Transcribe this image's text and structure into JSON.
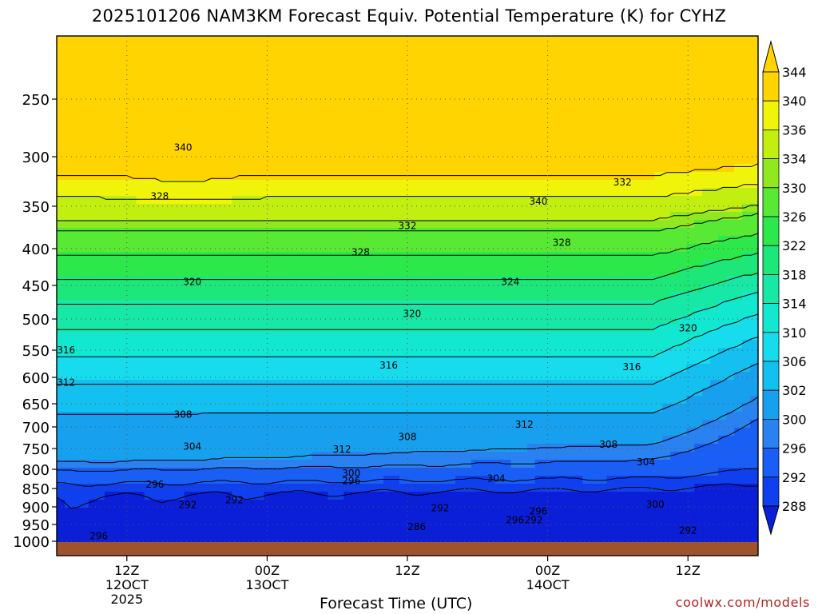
{
  "chart_data": {
    "type": "heatmap",
    "title": "2025101206 NAM3KM Forecast Equiv. Potential Temperature (K) for CYHZ",
    "xlabel": "Forecast Time (UTC)",
    "y_axis": {
      "scale": "pressure",
      "inverted": true,
      "range": [
        1000,
        200
      ],
      "ticks": [
        250,
        300,
        350,
        400,
        450,
        500,
        550,
        600,
        650,
        700,
        750,
        800,
        850,
        900,
        950,
        1000
      ]
    },
    "x_axis": {
      "range_hours": [
        -15,
        135
      ],
      "ticks": [
        {
          "hour": 0,
          "label": "12Z",
          "sub": "12OCT",
          "sub2": "2025"
        },
        {
          "hour": 30,
          "label": "00Z",
          "sub": "13OCT",
          "sub2": ""
        },
        {
          "hour": 60,
          "label": "12Z",
          "sub": "",
          "sub2": ""
        },
        {
          "hour": 90,
          "label": "00Z",
          "sub": "14OCT",
          "sub2": ""
        },
        {
          "hour": 120,
          "label": "12Z",
          "sub": "",
          "sub2": ""
        }
      ]
    },
    "grid": "dotted",
    "colorbar": {
      "placement": "right",
      "levels": [
        288,
        292,
        296,
        300,
        302,
        306,
        310,
        314,
        318,
        322,
        326,
        330,
        334,
        336,
        340,
        344
      ],
      "colors": [
        "#0b1fd8",
        "#1040ee",
        "#1a5ff5",
        "#2a82f0",
        "#16a0ee",
        "#14c0f0",
        "#17dcee",
        "#12e8d0",
        "#17e8a6",
        "#1ce778",
        "#2de84a",
        "#58e934",
        "#90e81f",
        "#c2ee10",
        "#f0f40a",
        "#ffd400"
      ]
    },
    "contour_labels": [
      {
        "x": -6,
        "p": 985,
        "text": "296"
      },
      {
        "x": -13,
        "p": 550,
        "text": "316"
      },
      {
        "x": -13,
        "p": 610,
        "text": "312"
      },
      {
        "x": 6,
        "p": 840,
        "text": "296"
      },
      {
        "x": 13,
        "p": 895,
        "text": "292"
      },
      {
        "x": 23,
        "p": 882,
        "text": "292"
      },
      {
        "x": 14,
        "p": 745,
        "text": "304"
      },
      {
        "x": 12,
        "p": 673,
        "text": "308"
      },
      {
        "x": 14,
        "p": 445,
        "text": "320"
      },
      {
        "x": 7,
        "p": 340,
        "text": "328"
      },
      {
        "x": 12,
        "p": 292,
        "text": "340"
      },
      {
        "x": 46,
        "p": 752,
        "text": "312"
      },
      {
        "x": 48,
        "p": 810,
        "text": "300"
      },
      {
        "x": 48,
        "p": 830,
        "text": "296"
      },
      {
        "x": 50,
        "p": 405,
        "text": "328"
      },
      {
        "x": 56,
        "p": 578,
        "text": "316"
      },
      {
        "x": 61,
        "p": 492,
        "text": "320"
      },
      {
        "x": 60,
        "p": 723,
        "text": "308"
      },
      {
        "x": 60,
        "p": 373,
        "text": "332"
      },
      {
        "x": 62,
        "p": 957,
        "text": "286"
      },
      {
        "x": 67,
        "p": 903,
        "text": "292"
      },
      {
        "x": 79,
        "p": 824,
        "text": "304"
      },
      {
        "x": 82,
        "p": 445,
        "text": "324"
      },
      {
        "x": 83,
        "p": 937,
        "text": "296"
      },
      {
        "x": 87,
        "p": 937,
        "text": "292"
      },
      {
        "x": 85,
        "p": 695,
        "text": "312"
      },
      {
        "x": 88,
        "p": 913,
        "text": "296"
      },
      {
        "x": 88,
        "p": 345,
        "text": "340"
      },
      {
        "x": 93,
        "p": 393,
        "text": "328"
      },
      {
        "x": 103,
        "p": 741,
        "text": "308"
      },
      {
        "x": 106,
        "p": 326,
        "text": "332"
      },
      {
        "x": 108,
        "p": 581,
        "text": "316"
      },
      {
        "x": 111,
        "p": 783,
        "text": "304"
      },
      {
        "x": 113,
        "p": 893,
        "text": "300"
      },
      {
        "x": 120,
        "p": 515,
        "text": "320"
      },
      {
        "x": 120,
        "p": 968,
        "text": "292"
      }
    ]
  },
  "credit": "coolwx.com/models"
}
